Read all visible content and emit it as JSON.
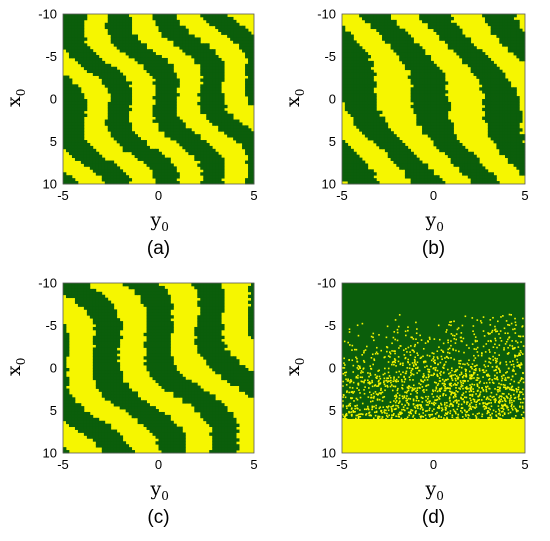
{
  "colors": {
    "basin_a": "#0b5e0b",
    "basin_b": "#f6f600"
  },
  "chart_data": [
    {
      "type": "heatmap",
      "panel_label": "(a)",
      "xlabel": "y",
      "xlabel_sub": "0",
      "ylabel": "x",
      "ylabel_sub": "0",
      "xlim": [
        -5,
        5
      ],
      "ylim": [
        -10,
        10
      ],
      "y_inverted": true,
      "xticks": [
        "-5",
        "0",
        "5"
      ],
      "yticks": [
        "-10",
        "-5",
        "0",
        "5",
        "10"
      ],
      "pattern": "interleaved swirling basins, two spirals"
    },
    {
      "type": "heatmap",
      "panel_label": "(b)",
      "xlabel": "y",
      "xlabel_sub": "0",
      "ylabel": "x",
      "ylabel_sub": "0",
      "xlim": [
        -5,
        5
      ],
      "ylim": [
        -10,
        10
      ],
      "y_inverted": true,
      "xticks": [
        "-5",
        "0",
        "5"
      ],
      "yticks": [
        "-10",
        "-5",
        "0",
        "5",
        "10"
      ],
      "pattern": "diagonal interleaved stripes with spiral ends"
    },
    {
      "type": "heatmap",
      "panel_label": "(c)",
      "xlabel": "y",
      "xlabel_sub": "0",
      "ylabel": "x",
      "ylabel_sub": "0",
      "xlim": [
        -5,
        5
      ],
      "ylim": [
        -10,
        10
      ],
      "y_inverted": true,
      "xticks": [
        "-5",
        "0",
        "5"
      ],
      "yticks": [
        "-10",
        "-5",
        "0",
        "5",
        "10"
      ],
      "pattern": "curved interleaved stripes"
    },
    {
      "type": "heatmap",
      "panel_label": "(d)",
      "xlabel": "y",
      "xlabel_sub": "0",
      "ylabel": "x",
      "ylabel_sub": "0",
      "xlim": [
        -5,
        5
      ],
      "ylim": [
        -10,
        10
      ],
      "y_inverted": true,
      "xticks": [
        "-5",
        "0",
        "5"
      ],
      "yticks": [
        "-10",
        "-5",
        "0",
        "5",
        "10"
      ],
      "pattern": "riddled transition: green top, yellow bottom, speckled middle"
    }
  ]
}
